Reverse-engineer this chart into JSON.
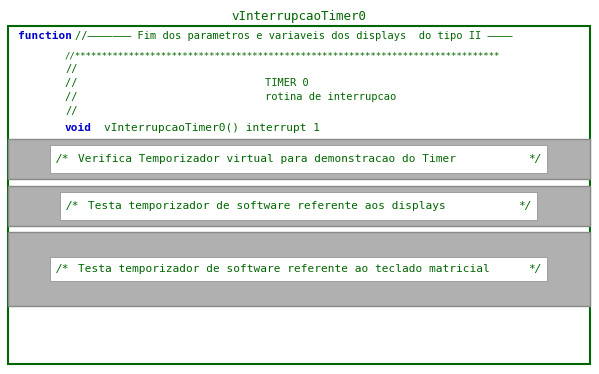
{
  "title": "vInterrupcaoTimer0",
  "bg_color": "#ffffff",
  "green_color": "#006600",
  "blue_color": "#0000cc",
  "gray_color": "#b0b0b0",
  "dark_gray": "#888888",
  "function_label": "function",
  "header_line": "//——————— Fim dos parametros e variaveis dos displays  do tipo II ————",
  "comment_stars": "//*******************************************************************************",
  "comment_slash1": "//",
  "comment_timer": "//                              TIMER 0",
  "comment_rotina": "//                              rotina de interrupcao",
  "comment_slash2": "//",
  "void_keyword": "void",
  "void_rest": "vInterrupcaoTimer0() interrupt 1",
  "block1_pre": "/*",
  "block1_text": "Verifica Temporizador virtual para demonstracao do Timer",
  "block1_suf": "*/",
  "block2_pre": "/*",
  "block2_text": "Testa temporizador de software referente aos displays",
  "block2_suf": "*/",
  "block3_pre": "/*",
  "block3_text": "Testa temporizador de software referente ao teclado matricial",
  "block3_suf": "*/"
}
